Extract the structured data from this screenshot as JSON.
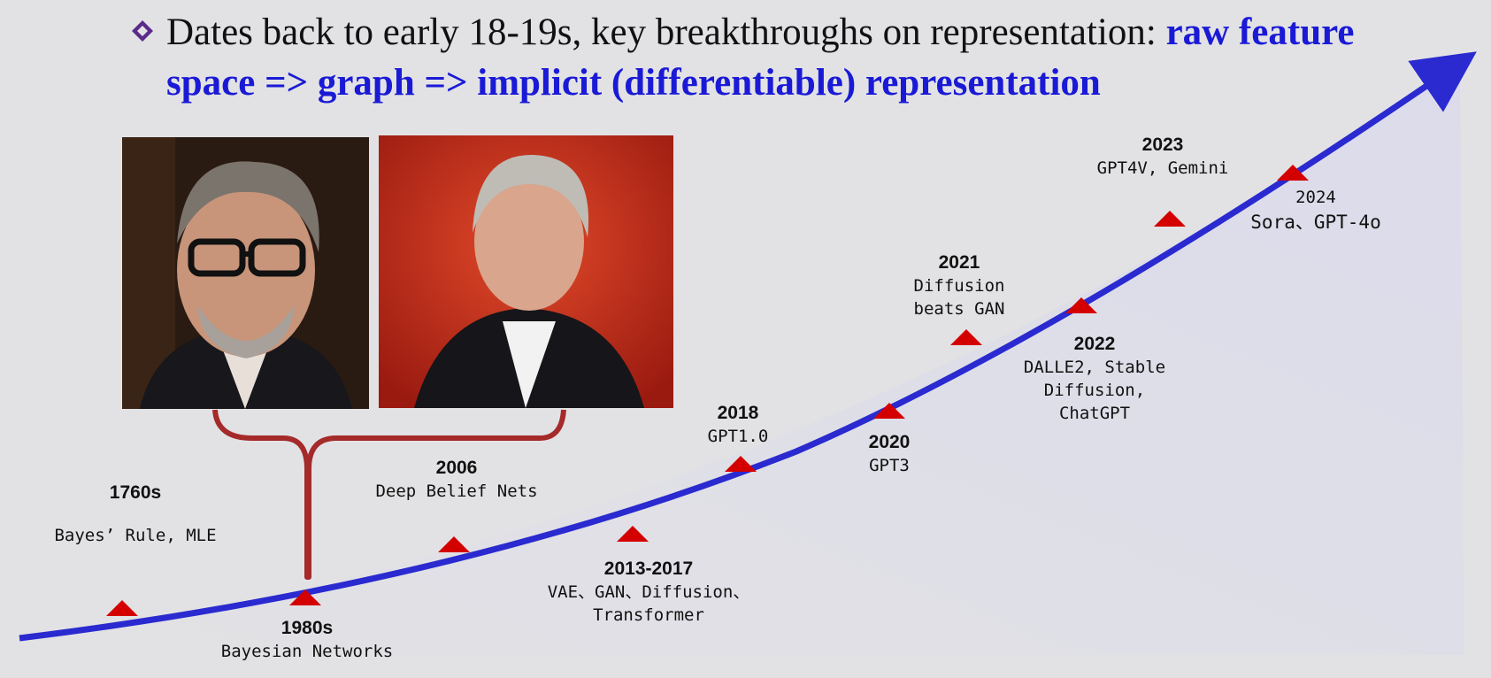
{
  "headline": {
    "part1": "Dates back to  early 18-19s, key breakthroughs on  representation: ",
    "part2": "raw feature",
    "line2": "space  =>  graph  => implicit (differentiable)  representation"
  },
  "timeline": [
    {
      "id": "1760s",
      "year": "1760s",
      "desc": "Bayes’ Rule, MLE"
    },
    {
      "id": "1980s",
      "year": "1980s",
      "desc": "Bayesian Networks"
    },
    {
      "id": "2006",
      "year": "2006",
      "desc": "Deep Belief Nets"
    },
    {
      "id": "2013",
      "year": "2013-2017",
      "desc1": "VAE、GAN、Diffusion、",
      "desc2": "Transformer"
    },
    {
      "id": "2018",
      "year": "2018",
      "desc": "GPT1.0"
    },
    {
      "id": "2020",
      "year": "2020",
      "desc": "GPT3"
    },
    {
      "id": "2021",
      "year": "2021",
      "desc1": "Diffusion",
      "desc2": "beats GAN"
    },
    {
      "id": "2022",
      "year": "2022",
      "desc1": "DALLE2, Stable",
      "desc2": "Diffusion,",
      "desc3": "ChatGPT"
    },
    {
      "id": "2023",
      "year": "2023",
      "desc": "GPT4V, Gemini"
    },
    {
      "id": "2024",
      "year": "2024",
      "desc": "Sora、GPT-4o"
    }
  ],
  "colors": {
    "accent": "#2a2ad0",
    "marker": "#d40000",
    "brace": "#a52a2a"
  }
}
